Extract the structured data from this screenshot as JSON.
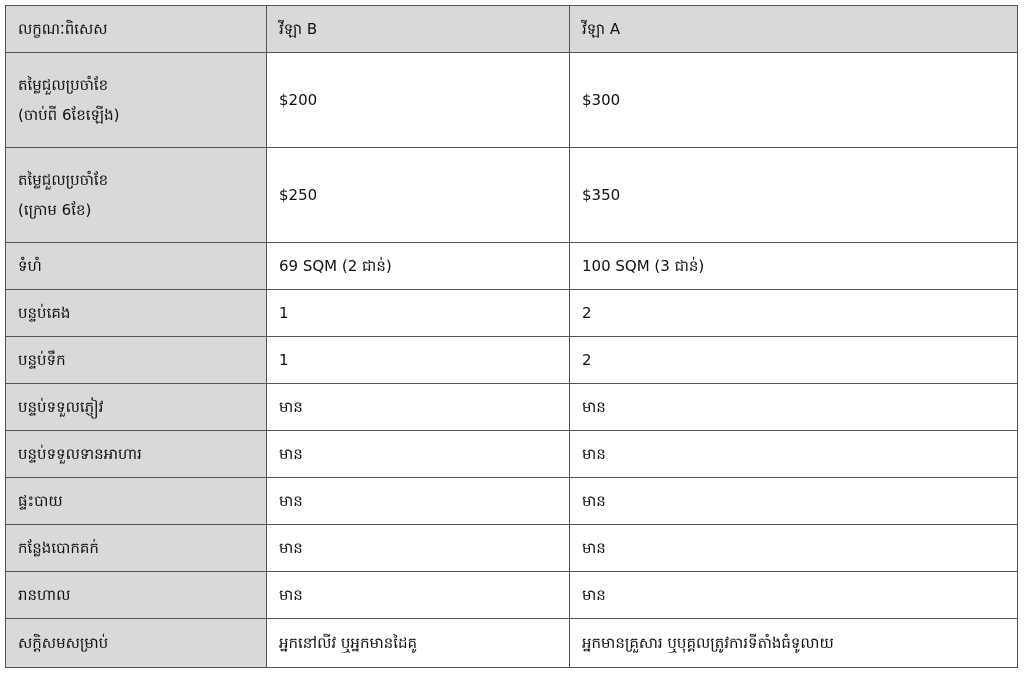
{
  "table": {
    "headers": [
      "លក្ខណៈពិសេស",
      "វីឡា B",
      "វីឡា A"
    ],
    "rows": [
      {
        "feature": [
          "តម្លៃជួលប្រចាំខែ",
          "(ចាប់ពី 6ខែឡើង)"
        ],
        "villa_b": "$200",
        "villa_a": "$300"
      },
      {
        "feature": [
          "តម្លៃជួលប្រចាំខែ",
          "(ក្រោម 6ខែ)"
        ],
        "villa_b": "$250",
        "villa_a": "$350"
      },
      {
        "feature": [
          "ទំហំ"
        ],
        "villa_b": "69 SQM (2 ជាន់)",
        "villa_a": "100 SQM (3 ជាន់)"
      },
      {
        "feature": [
          "បន្ទប់គេង"
        ],
        "villa_b": "1",
        "villa_a": "2"
      },
      {
        "feature": [
          "បន្ទប់ទឹក"
        ],
        "villa_b": "1",
        "villa_a": "2"
      },
      {
        "feature": [
          "បន្ទប់ទទួលភ្ញៀវ"
        ],
        "villa_b": "មាន",
        "villa_a": "មាន"
      },
      {
        "feature": [
          "បន្ទប់ទទួលទានអាហារ"
        ],
        "villa_b": "មាន",
        "villa_a": "មាន"
      },
      {
        "feature": [
          "ផ្ទះបាយ"
        ],
        "villa_b": "មាន",
        "villa_a": "មាន"
      },
      {
        "feature": [
          "កន្លែងបោកគក់"
        ],
        "villa_b": "មាន",
        "villa_a": "មាន"
      },
      {
        "feature": [
          "រានហាល"
        ],
        "villa_b": "មាន",
        "villa_a": "មាន"
      },
      {
        "feature": [
          "សក្តិសមសម្រាប់"
        ],
        "villa_b": "អ្នកនៅលីវ ឬអ្នកមានដៃគូ",
        "villa_a": "អ្នកមានគ្រួសារ ឬបុគ្គលត្រូវការទីតាំងធំទូលាយ"
      }
    ]
  }
}
